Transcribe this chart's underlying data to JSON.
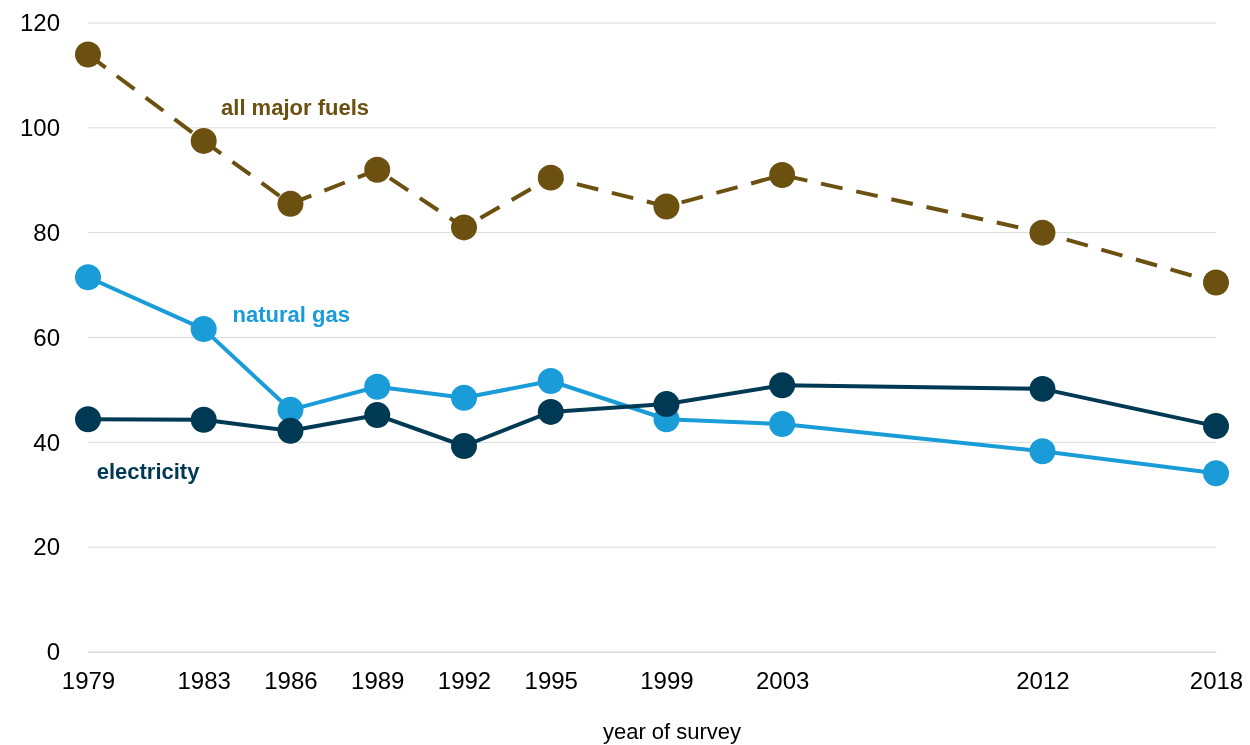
{
  "chart_data": {
    "type": "line",
    "xlabel": "year of survey",
    "x": [
      1979,
      1983,
      1986,
      1989,
      1992,
      1995,
      1999,
      2003,
      2012,
      2018
    ],
    "xlim": [
      1979,
      2018
    ],
    "xticks": [
      1979,
      1983,
      1986,
      1989,
      1992,
      1995,
      1999,
      2003,
      2012,
      2018
    ],
    "ylim": [
      0,
      120
    ],
    "yticks": [
      0,
      20,
      40,
      60,
      80,
      100,
      120
    ],
    "grid": "y",
    "legend": false,
    "marker": "circle",
    "series": [
      {
        "name": "all major fuels",
        "color": "#6b5010",
        "line_style": "dashed",
        "values": [
          114,
          97.5,
          85.5,
          92,
          81,
          90.5,
          85,
          91,
          80,
          70.5
        ]
      },
      {
        "name": "natural gas",
        "color": "#1a9cd8",
        "line_style": "solid",
        "values": [
          71.5,
          61.6,
          46.2,
          50.6,
          48.5,
          51.7,
          44.4,
          43.5,
          38.3,
          34.1
        ]
      },
      {
        "name": "electricity",
        "color": "#003953",
        "line_style": "solid",
        "values": [
          44.4,
          44.3,
          42.2,
          45.2,
          39.3,
          45.8,
          47.3,
          50.9,
          50.2,
          43.1
        ]
      }
    ]
  }
}
